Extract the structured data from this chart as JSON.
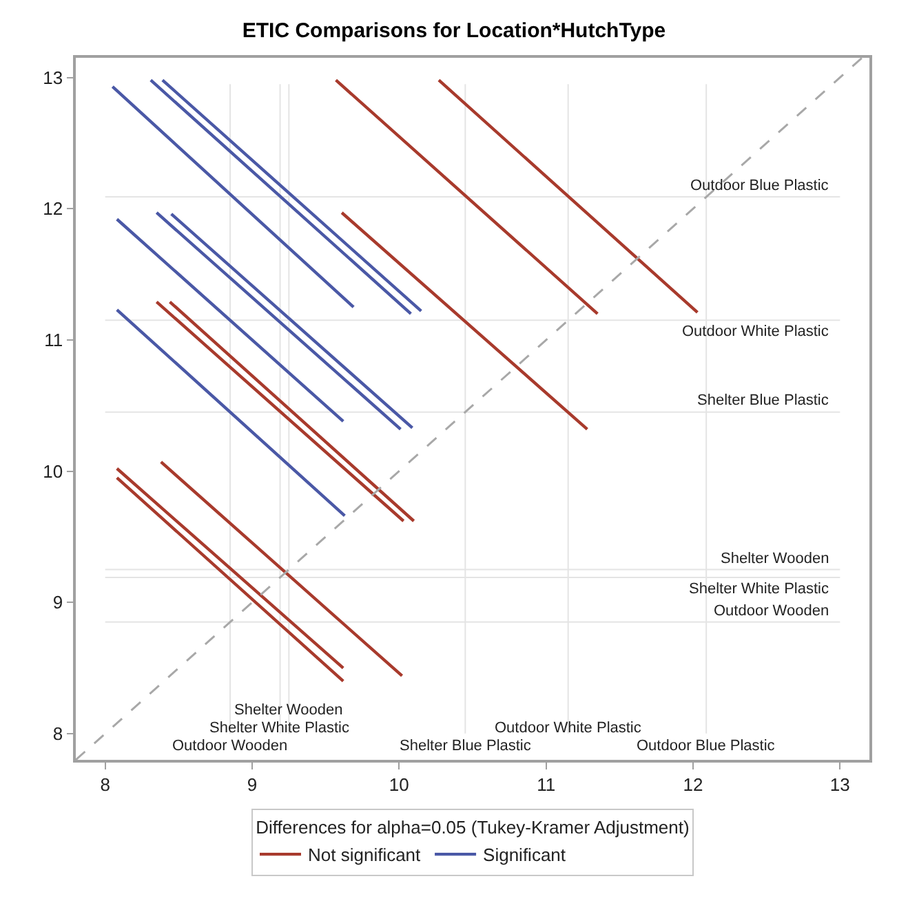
{
  "chart_data": {
    "type": "line",
    "title": "ETIC Comparisons for Location*HutchType",
    "legend": "bottom",
    "legend_title": "Differences for alpha=0.05 (Tukey-Kramer Adjustment)",
    "xlim": [
      7.8,
      13.2
    ],
    "ylim": [
      7.8,
      13.15
    ],
    "xticks": [
      8,
      9,
      10,
      11,
      12,
      13
    ],
    "yticks": [
      8,
      9,
      10,
      11,
      12,
      13
    ],
    "grid": false,
    "line_style": "solid",
    "series": [
      {
        "name": "Not significant",
        "color": "#a83a2c",
        "x": [
          9.57,
          11.35
        ],
        "values": [
          12.98,
          11.2
        ]
      },
      {
        "color": "#a83a2c",
        "x": [
          10.27,
          12.03
        ],
        "values": [
          12.98,
          11.21
        ]
      },
      {
        "color": "#a83a2c",
        "x": [
          9.61,
          11.28
        ],
        "values": [
          11.97,
          10.32
        ]
      },
      {
        "color": "#a83a2c",
        "x": [
          8.35,
          10.03
        ],
        "values": [
          11.29,
          9.62
        ]
      },
      {
        "color": "#a83a2c",
        "x": [
          8.44,
          10.1
        ],
        "values": [
          11.29,
          9.62
        ]
      },
      {
        "color": "#a83a2c",
        "x": [
          8.08,
          9.62
        ],
        "values": [
          10.02,
          8.5
        ]
      },
      {
        "color": "#a83a2c",
        "x": [
          8.08,
          9.62
        ],
        "values": [
          9.95,
          8.4
        ]
      },
      {
        "color": "#a83a2c",
        "x": [
          8.38,
          10.02
        ],
        "values": [
          10.07,
          8.44
        ]
      },
      {
        "name": "Significant",
        "color": "#4a58a6",
        "x": [
          8.05,
          9.69
        ],
        "values": [
          12.93,
          11.25
        ]
      },
      {
        "color": "#4a58a6",
        "x": [
          8.31,
          10.08
        ],
        "values": [
          12.98,
          11.2
        ]
      },
      {
        "color": "#4a58a6",
        "x": [
          8.39,
          10.15
        ],
        "values": [
          12.98,
          11.22
        ]
      },
      {
        "color": "#4a58a6",
        "x": [
          8.08,
          9.62
        ],
        "values": [
          11.92,
          10.38
        ]
      },
      {
        "color": "#4a58a6",
        "x": [
          8.35,
          10.01
        ],
        "values": [
          11.97,
          10.32
        ]
      },
      {
        "color": "#4a58a6",
        "x": [
          8.45,
          10.09
        ],
        "values": [
          11.96,
          10.33
        ]
      },
      {
        "color": "#4a58a6",
        "x": [
          8.08,
          9.63
        ],
        "values": [
          11.23,
          9.66
        ]
      },
      {
        "type": "line",
        "color": "#a8a8a8",
        "line_style": "dashed",
        "x": [
          7.8,
          13.15
        ],
        "values": [
          7.8,
          13.15
        ]
      }
    ],
    "ref_lines": [
      {
        "axis": "y",
        "value": 12.09,
        "label": "Outdoor Blue Plastic",
        "color": "#e4e4e4"
      },
      {
        "axis": "y",
        "value": 11.15,
        "label": "Outdoor White Plastic",
        "color": "#e4e4e4"
      },
      {
        "axis": "y",
        "value": 10.45,
        "label": "Shelter Blue Plastic",
        "color": "#e4e4e4"
      },
      {
        "axis": "y",
        "value": 9.25,
        "label": "Shelter Wooden",
        "color": "#e4e4e4"
      },
      {
        "axis": "y",
        "value": 9.19,
        "label": "Shelter White Plastic",
        "color": "#e4e4e4"
      },
      {
        "axis": "y",
        "value": 8.85,
        "label": "Outdoor Wooden",
        "color": "#e4e4e4"
      },
      {
        "axis": "x",
        "value": 8.85,
        "label": "Outdoor Wooden",
        "color": "#e4e4e4"
      },
      {
        "axis": "x",
        "value": 9.19,
        "label": "Shelter White Plastic",
        "color": "#e4e4e4"
      },
      {
        "axis": "x",
        "value": 9.25,
        "label": "Shelter Wooden",
        "color": "#e4e4e4"
      },
      {
        "axis": "x",
        "value": 10.45,
        "label": "Shelter Blue Plastic",
        "color": "#e4e4e4"
      },
      {
        "axis": "x",
        "value": 11.15,
        "label": "Outdoor White Plastic",
        "color": "#e4e4e4"
      },
      {
        "axis": "x",
        "value": 12.09,
        "label": "Outdoor Blue Plastic",
        "color": "#e4e4e4"
      }
    ]
  }
}
